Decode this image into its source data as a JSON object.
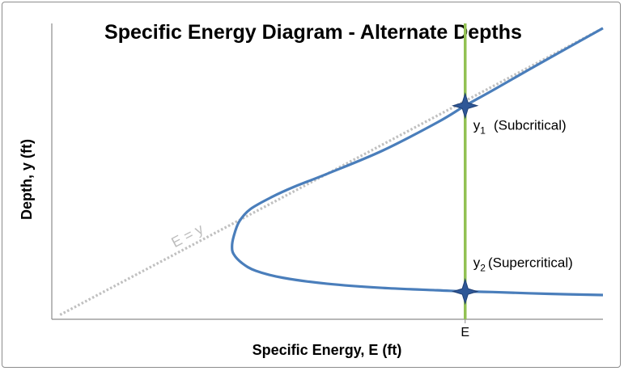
{
  "chart_data": {
    "type": "line",
    "title": "Specific Energy Diagram - Alternate Depths",
    "xlabel": "Specific Energy, E (ft)",
    "ylabel": "Depth, y (ft)",
    "xlim": [
      0,
      10
    ],
    "ylim": [
      0,
      5
    ],
    "grid": false,
    "legend": "none",
    "x_ticks": [
      {
        "value": 7.5,
        "label": "E"
      }
    ],
    "series": [
      {
        "key": "reference",
        "label": "E = y",
        "style": "dotted",
        "color": "#c0c0c0",
        "x": [
          0.15,
          10.0
        ],
        "y": [
          0.075,
          4.92
        ]
      },
      {
        "key": "energy",
        "style": "solid",
        "color": "#4a7ebb",
        "x": [
          10.0,
          9.0,
          8.0,
          7.5,
          7.0,
          6.0,
          5.0,
          4.4,
          4.0,
          3.6,
          3.4,
          3.3,
          3.27,
          3.3,
          3.45,
          3.7,
          4.2,
          5.0,
          6.0,
          7.0,
          7.5,
          8.0,
          9.0,
          10.0
        ],
        "y": [
          4.92,
          4.4,
          3.87,
          3.61,
          3.33,
          2.85,
          2.46,
          2.24,
          2.07,
          1.86,
          1.65,
          1.4,
          1.23,
          1.1,
          0.95,
          0.82,
          0.7,
          0.6,
          0.53,
          0.49,
          0.47,
          0.46,
          0.43,
          0.41
        ]
      }
    ],
    "vline": {
      "x": 7.5,
      "y_range": [
        0,
        5.0
      ],
      "color": "#92c153"
    },
    "points": [
      {
        "key": "y1",
        "x": 7.5,
        "y": 3.61,
        "sym": "y",
        "sub": "1",
        "desc": "(Subcritical)"
      },
      {
        "key": "y2",
        "x": 7.5,
        "y": 0.47,
        "sym": "y",
        "sub": "2",
        "desc": "(Supercritical)"
      }
    ],
    "colors": {
      "curve": "#4a7ebb",
      "marker": "#2e5797",
      "vline": "#92c153",
      "reference": "#c0c0c0"
    }
  }
}
